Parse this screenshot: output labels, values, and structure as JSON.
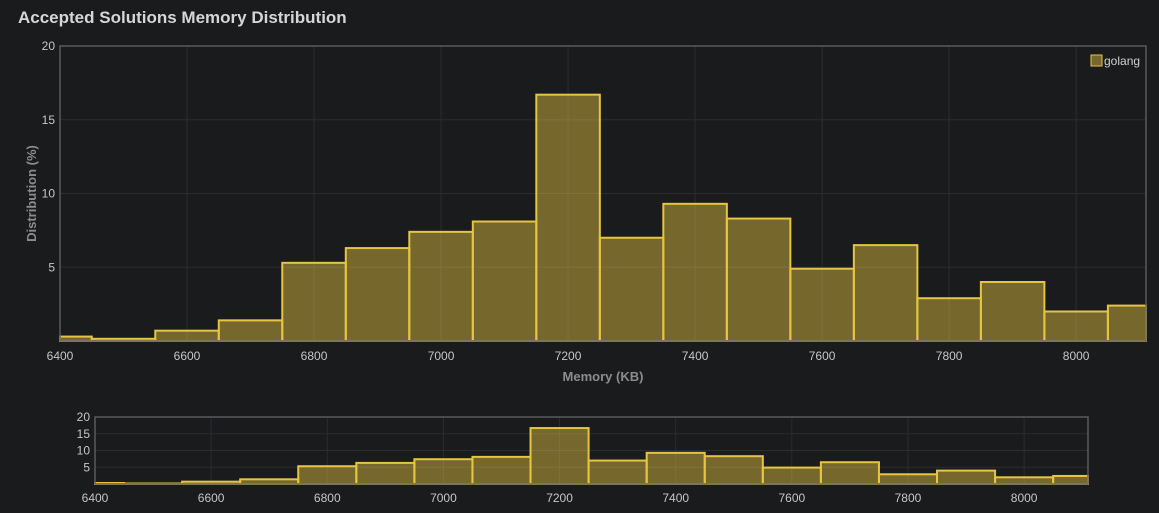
{
  "chart_data": {
    "type": "bar",
    "title": "Accepted Solutions Memory Distribution",
    "xlabel": "Memory (KB)",
    "ylabel": "Distribution (%)",
    "xlim": [
      6400,
      8110
    ],
    "ylim": [
      0,
      20
    ],
    "x_ticks": [
      6400,
      6600,
      6800,
      7000,
      7200,
      7400,
      7600,
      7800,
      8000
    ],
    "y_ticks": [
      5,
      10,
      15,
      20
    ],
    "grid": true,
    "legend_position": "top-right",
    "bin_width": 100,
    "series": [
      {
        "name": "golang",
        "color": "#e6c542",
        "fill": "rgba(230,197,66,0.45)",
        "bins": [
          {
            "start": 6350,
            "value": 0.3
          },
          {
            "start": 6450,
            "value": 0.15
          },
          {
            "start": 6550,
            "value": 0.7
          },
          {
            "start": 6650,
            "value": 1.4
          },
          {
            "start": 6750,
            "value": 5.3
          },
          {
            "start": 6850,
            "value": 6.3
          },
          {
            "start": 6950,
            "value": 7.4
          },
          {
            "start": 7050,
            "value": 8.1
          },
          {
            "start": 7150,
            "value": 16.7
          },
          {
            "start": 7250,
            "value": 7.0
          },
          {
            "start": 7350,
            "value": 9.3
          },
          {
            "start": 7450,
            "value": 8.3
          },
          {
            "start": 7550,
            "value": 4.9
          },
          {
            "start": 7650,
            "value": 6.5
          },
          {
            "start": 7750,
            "value": 2.9
          },
          {
            "start": 7850,
            "value": 4.0
          },
          {
            "start": 7950,
            "value": 2.0
          },
          {
            "start": 8050,
            "value": 2.4
          }
        ]
      }
    ]
  }
}
